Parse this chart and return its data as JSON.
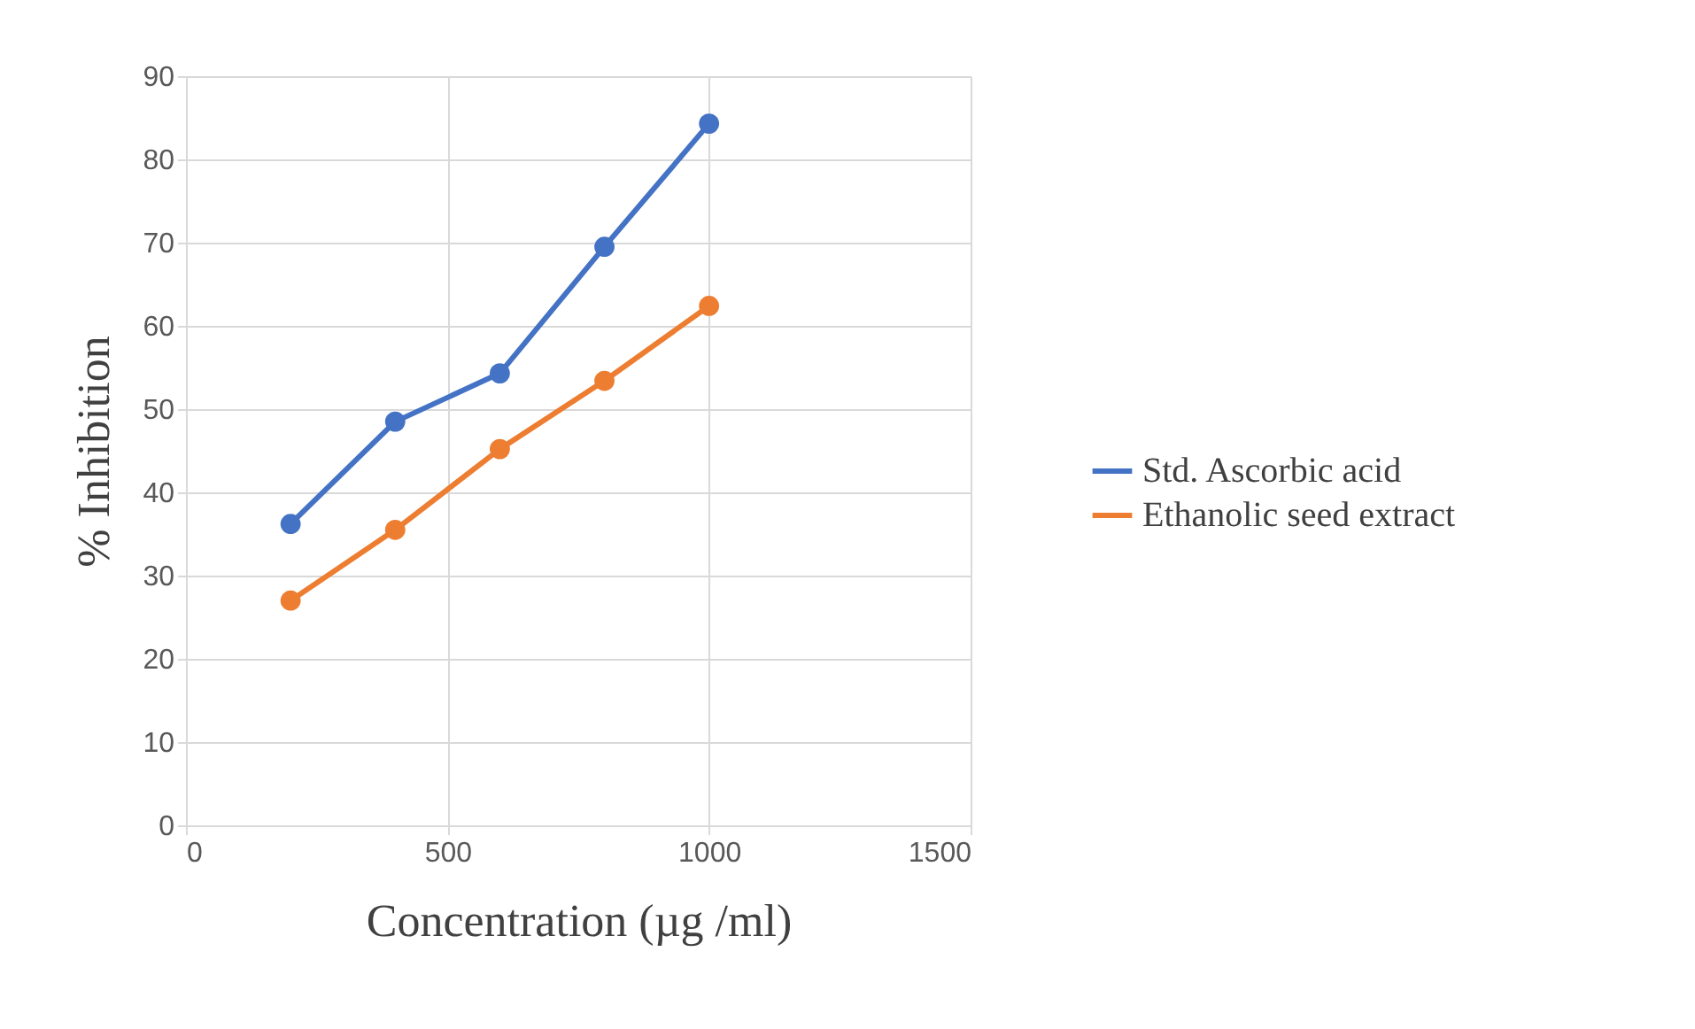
{
  "chart_data": {
    "type": "line",
    "xlabel": "Concentration (µg /ml)",
    "ylabel": "% Inhibition",
    "x": [
      200,
      400,
      600,
      800,
      1000
    ],
    "series": [
      {
        "name": "Std. Ascorbic acid",
        "color": "#4472c4",
        "values": [
          36.2,
          48.5,
          54.3,
          69.5,
          84.3
        ]
      },
      {
        "name": "Ethanolic seed extract",
        "color": "#ed7d31",
        "values": [
          27.0,
          35.5,
          45.2,
          53.4,
          62.4
        ]
      }
    ],
    "xlim": [
      0,
      1500
    ],
    "xticks": [
      0,
      500,
      1000,
      1500
    ],
    "ylim": [
      0,
      90
    ],
    "yticks": [
      0,
      10,
      20,
      30,
      40,
      50,
      60,
      70,
      80,
      90
    ],
    "grid": true,
    "legend": "right",
    "marker": "circle",
    "line_style": "solid"
  }
}
